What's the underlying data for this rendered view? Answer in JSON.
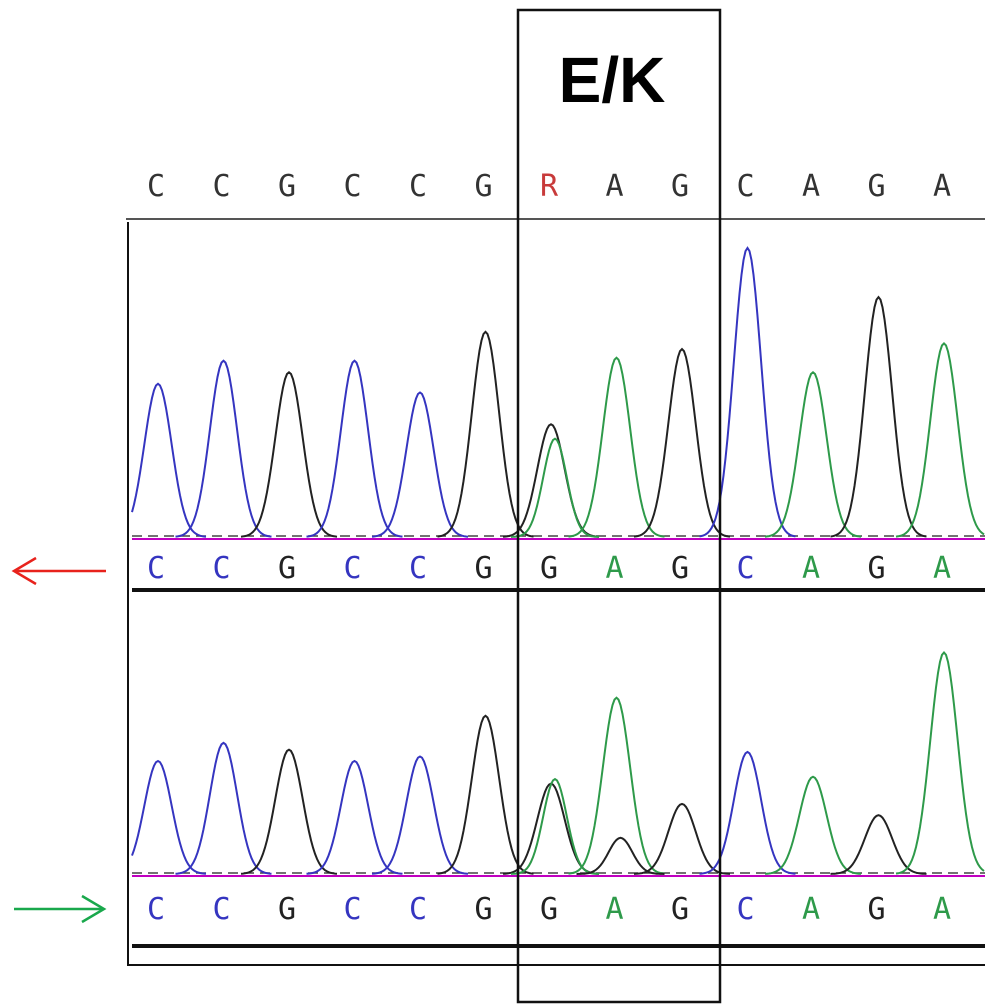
{
  "label": "E/K",
  "colors": {
    "A": "#2e9a4a",
    "C": "#3535c0",
    "G": "#222222",
    "T": "#d03030",
    "R": "#c83a3a",
    "baseline": "#c000c0",
    "reverse_arrow": "#e8221c",
    "forward_arrow": "#19a84c"
  },
  "consensus": [
    "C",
    "C",
    "G",
    "C",
    "C",
    "G",
    "R",
    "A",
    "G",
    "C",
    "A",
    "G",
    "A"
  ],
  "traces": [
    {
      "direction": "reverse",
      "arrow_icon": "left-arrow-icon",
      "bases": [
        "C",
        "C",
        "G",
        "C",
        "C",
        "G",
        "G",
        "A",
        "G",
        "C",
        "A",
        "G",
        "A"
      ],
      "peaks": [
        {
          "base": "C",
          "h": 0.53
        },
        {
          "base": "C",
          "h": 0.61
        },
        {
          "base": "G",
          "h": 0.57
        },
        {
          "base": "C",
          "h": 0.61
        },
        {
          "base": "C",
          "h": 0.5
        },
        {
          "base": "G",
          "h": 0.71
        },
        {
          "base": "G",
          "h": 0.39
        },
        {
          "base": "A",
          "h": 0.62
        },
        {
          "base": "G",
          "h": 0.65
        },
        {
          "base": "C",
          "h": 1.0
        },
        {
          "base": "A",
          "h": 0.57
        },
        {
          "base": "G",
          "h": 0.83
        },
        {
          "base": "A",
          "h": 0.67
        }
      ],
      "secondary": [
        {
          "index": 6,
          "base": "A",
          "h": 0.34
        }
      ]
    },
    {
      "direction": "forward",
      "arrow_icon": "right-arrow-icon",
      "bases": [
        "C",
        "C",
        "G",
        "C",
        "C",
        "G",
        "G",
        "A",
        "G",
        "C",
        "A",
        "G",
        "A"
      ],
      "peaks": [
        {
          "base": "C",
          "h": 0.5
        },
        {
          "base": "C",
          "h": 0.58
        },
        {
          "base": "G",
          "h": 0.55
        },
        {
          "base": "C",
          "h": 0.5
        },
        {
          "base": "C",
          "h": 0.52
        },
        {
          "base": "G",
          "h": 0.7
        },
        {
          "base": "G",
          "h": 0.4
        },
        {
          "base": "A",
          "h": 0.78
        },
        {
          "base": "G",
          "h": 0.31
        },
        {
          "base": "C",
          "h": 0.54
        },
        {
          "base": "A",
          "h": 0.43
        },
        {
          "base": "G",
          "h": 0.26
        },
        {
          "base": "A",
          "h": 0.98
        }
      ],
      "secondary": [
        {
          "index": 6,
          "base": "A",
          "h": 0.42
        },
        {
          "index": 7,
          "base": "G",
          "h": 0.16
        }
      ]
    }
  ]
}
